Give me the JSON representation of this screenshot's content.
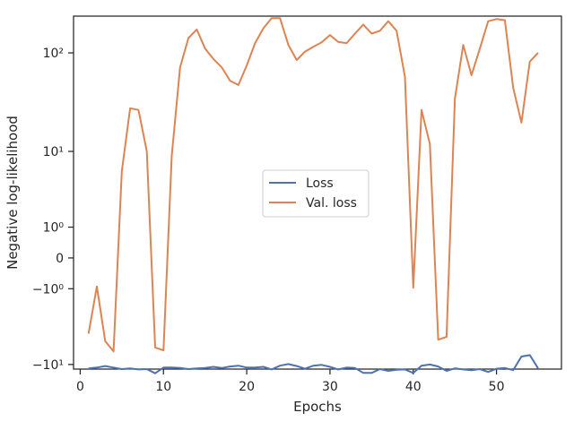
{
  "chart_data": {
    "type": "line",
    "xlabel": "Epochs",
    "ylabel": "Negative log-likelihood",
    "y_scale": "symlog",
    "xlim": [
      -0.8,
      57.8
    ],
    "ylim": [
      -11.2,
      230
    ],
    "x_ticks": [
      0,
      10,
      20,
      30,
      40,
      50
    ],
    "y_ticks": [
      {
        "value": -10,
        "label": "−10¹"
      },
      {
        "value": -1,
        "label": "−10⁰"
      },
      {
        "value": 0,
        "label": "0"
      },
      {
        "value": 1,
        "label": "10⁰"
      },
      {
        "value": 10,
        "label": "10¹"
      },
      {
        "value": 100,
        "label": "10²"
      }
    ],
    "grid": false,
    "legend_position": "center",
    "x": [
      1,
      2,
      3,
      4,
      5,
      6,
      7,
      8,
      9,
      10,
      11,
      12,
      13,
      14,
      15,
      16,
      17,
      18,
      19,
      20,
      21,
      22,
      23,
      24,
      25,
      26,
      27,
      28,
      29,
      30,
      31,
      32,
      33,
      34,
      35,
      36,
      37,
      38,
      39,
      40,
      41,
      42,
      43,
      44,
      45,
      46,
      47,
      48,
      49,
      50,
      51,
      52,
      53,
      54,
      55
    ],
    "series": [
      {
        "name": "Loss",
        "color": "#4c72b0",
        "values": [
          -11.0,
          -10.8,
          -10.4,
          -10.8,
          -11.2,
          -11.0,
          -11.3,
          -11.2,
          -12.4,
          -10.8,
          -10.8,
          -10.9,
          -11.2,
          -11.0,
          -10.9,
          -10.6,
          -10.9,
          -10.5,
          -10.3,
          -10.8,
          -10.8,
          -10.6,
          -11.3,
          -10.3,
          -9.9,
          -10.4,
          -11.1,
          -10.3,
          -10.1,
          -10.6,
          -11.3,
          -10.8,
          -10.9,
          -12.3,
          -12.3,
          -11.2,
          -11.7,
          -11.4,
          -11.3,
          -12.3,
          -10.3,
          -10.0,
          -10.5,
          -11.7,
          -11.0,
          -11.3,
          -11.5,
          -11.2,
          -12.0,
          -11.1,
          -10.9,
          -11.5,
          -8.2,
          -7.9,
          -11.0
        ]
      },
      {
        "name": "Val. loss",
        "color": "#dd8452",
        "values": [
          -4.5,
          -0.9,
          -5.5,
          -7.2,
          6.0,
          28.0,
          27.0,
          10.0,
          -6.5,
          -7.0,
          9.0,
          72.0,
          140.0,
          170.0,
          110.0,
          87.0,
          72.0,
          53.0,
          48.0,
          75.0,
          125.0,
          175.0,
          220.0,
          220.0,
          120.0,
          85.0,
          103.0,
          115.0,
          127.0,
          150.0,
          128.0,
          125.0,
          155.0,
          190.0,
          155.0,
          165.0,
          205.0,
          165.0,
          58.0,
          -0.95,
          27.0,
          12.0,
          -5.3,
          -4.9,
          35.0,
          120.0,
          60.0,
          110.0,
          205.0,
          215.0,
          210.0,
          45.0,
          20.0,
          82.0,
          100.0
        ]
      }
    ],
    "legend": [
      "Loss",
      "Val. loss"
    ]
  }
}
